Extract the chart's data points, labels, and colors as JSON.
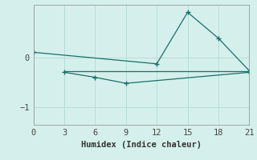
{
  "xlabel": "Humidex (Indice chaleur)",
  "background_color": "#d5f0ec",
  "grid_color": "#b8ddd8",
  "line_color": "#1a6e6a",
  "xlim": [
    0,
    21
  ],
  "ylim": [
    -1.35,
    1.05
  ],
  "yticks": [
    0,
    -1
  ],
  "xticks": [
    0,
    3,
    6,
    9,
    12,
    15,
    18,
    21
  ],
  "line1_x": [
    0,
    12,
    15,
    18,
    21
  ],
  "line1_y": [
    0.1,
    -0.13,
    0.9,
    0.38,
    -0.27
  ],
  "line2_x": [
    3,
    6,
    9,
    21
  ],
  "line2_y": [
    -0.3,
    -0.4,
    -0.52,
    -0.3
  ],
  "line3_x": [
    3,
    21
  ],
  "line3_y": [
    -0.28,
    -0.28
  ]
}
